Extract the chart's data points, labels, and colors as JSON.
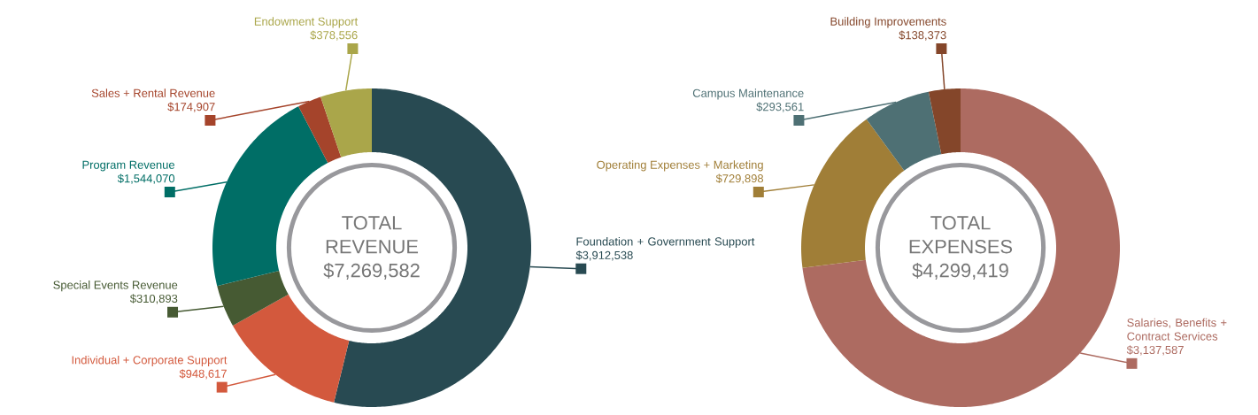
{
  "chart_data": [
    {
      "type": "donut",
      "title": "TOTAL REVENUE",
      "subtitle": "$7,269,582",
      "categories": [
        "Foundation + Government Support",
        "Individual + Corporate Support",
        "Special Events Revenue",
        "Program Revenue",
        "Sales + Rental Revenue",
        "Endowment Support"
      ],
      "values": [
        3912538,
        948617,
        310893,
        1544070,
        174907,
        378556
      ],
      "value_labels": [
        "$3,912,538",
        "$948,617",
        "$310,893",
        "$1,544,070",
        "$174,907",
        "$378,556"
      ],
      "colors": [
        "#284a52",
        "#d3593d",
        "#465a33",
        "#006e66",
        "#a5442b",
        "#aaa64a"
      ]
    },
    {
      "type": "donut",
      "title": "TOTAL EXPENSES",
      "subtitle": "$4,299,419",
      "categories": [
        "Salaries, Benefits + Contract Services",
        "Operating Expenses + Marketing",
        "Campus Maintenance",
        "Building Improvements"
      ],
      "values": [
        3137587,
        729898,
        293561,
        138373
      ],
      "value_labels": [
        "$3,137,587",
        "$729,898",
        "$293,561",
        "$138,373"
      ],
      "colors": [
        "#ad6b61",
        "#a07e37",
        "#4e7074",
        "#84462a"
      ]
    }
  ]
}
